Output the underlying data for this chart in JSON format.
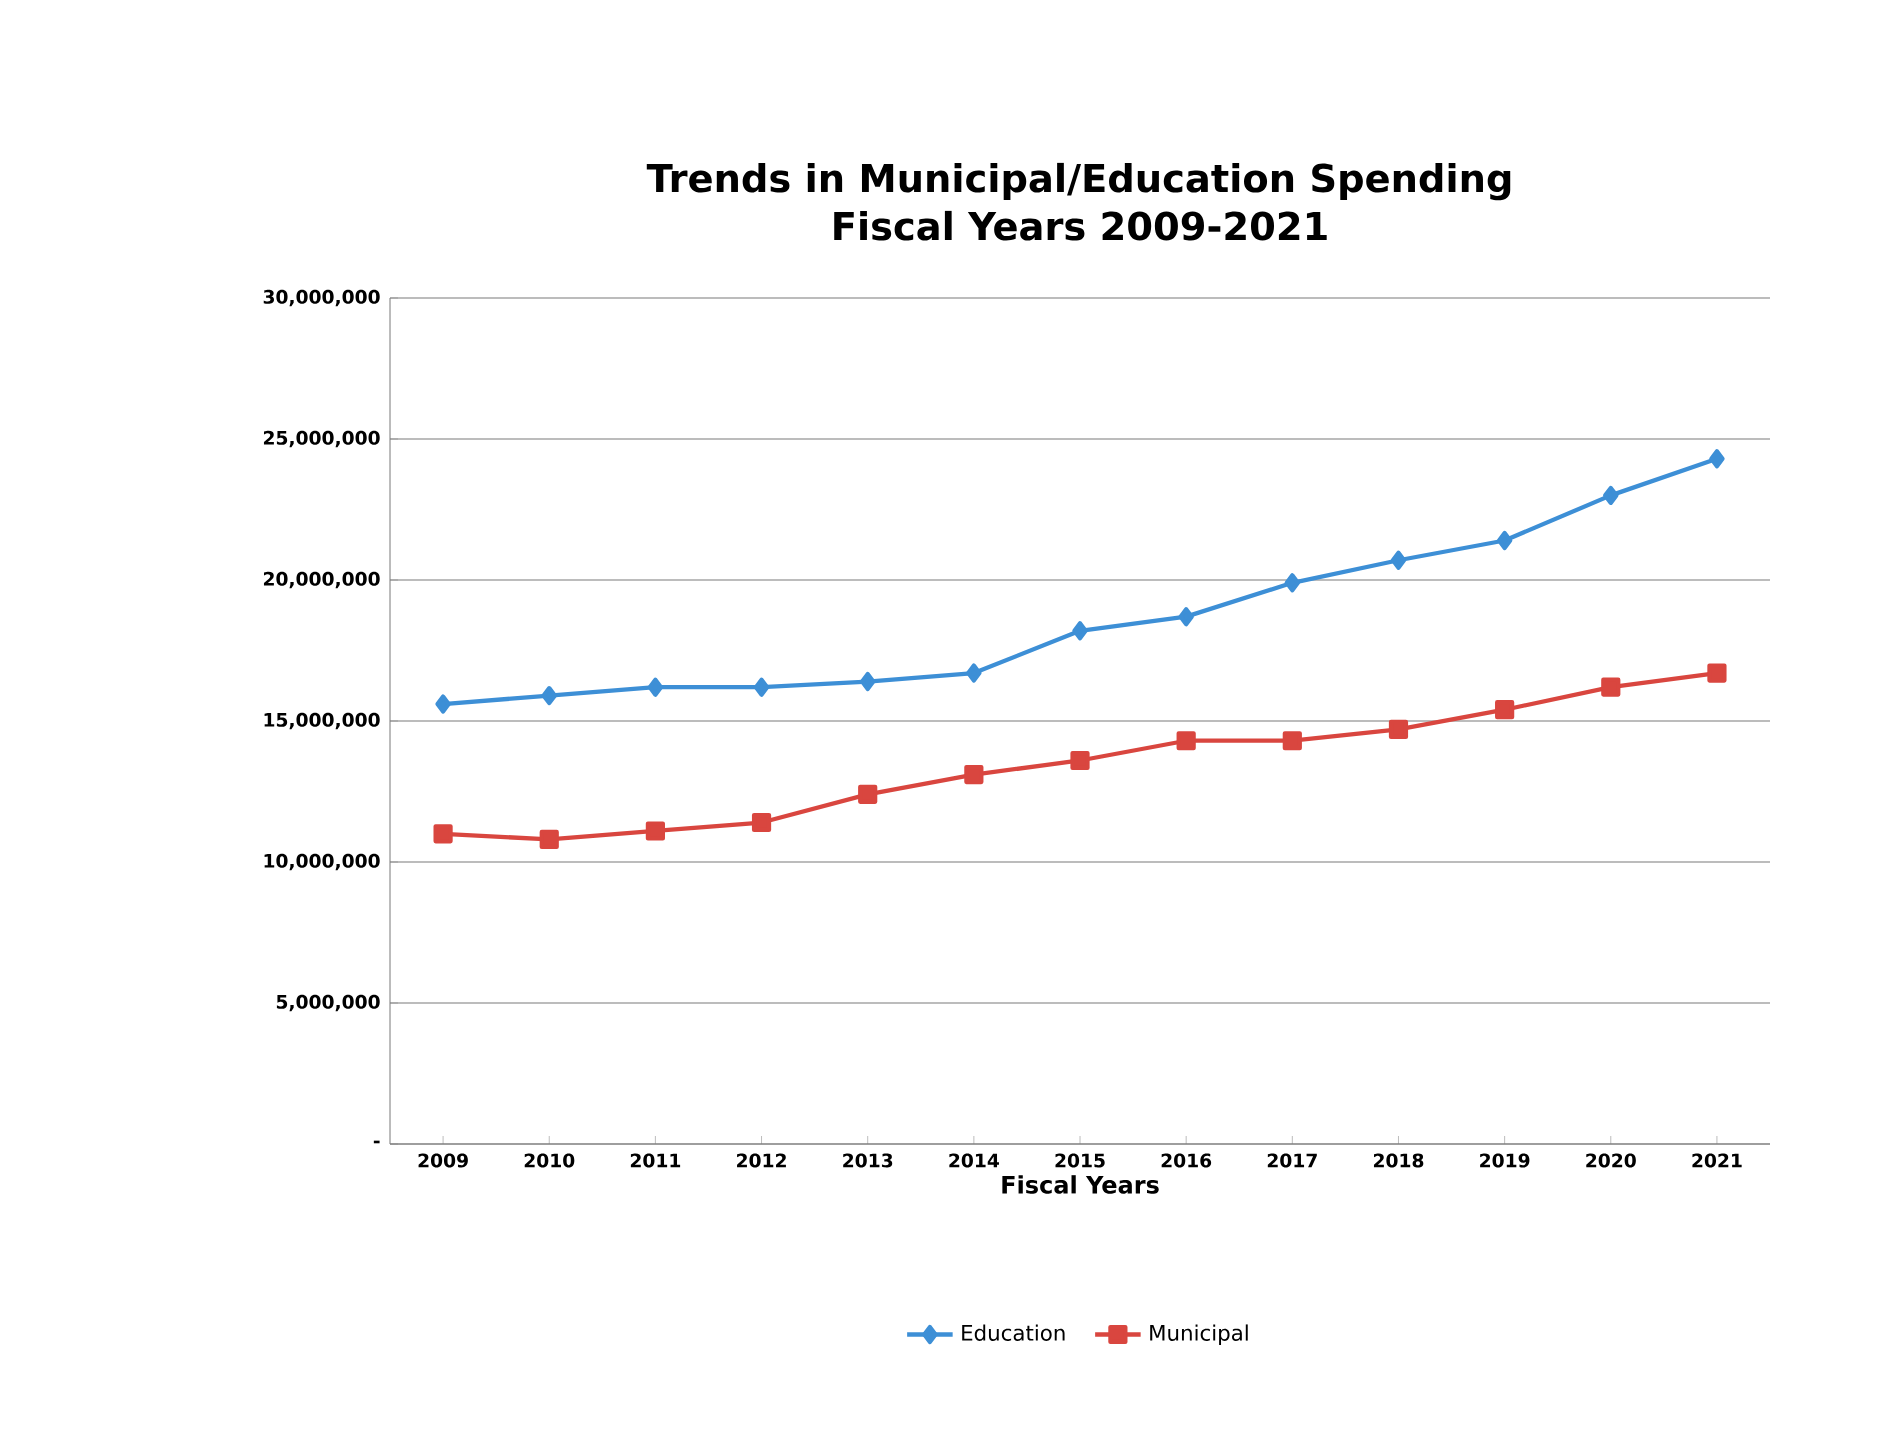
{
  "chart_data": {
    "type": "line",
    "title": "Trends in Municipal/Education Spending\nFiscal Years 2009-2021",
    "xlabel": "Fiscal Years",
    "categories": [
      "2009",
      "2010",
      "2011",
      "2012",
      "2013",
      "2014",
      "2015",
      "2016",
      "2017",
      "2018",
      "2019",
      "2020",
      "2021"
    ],
    "series": [
      {
        "name": "Education",
        "color": "#3d8fd6",
        "marker": "diamond",
        "values": [
          15600000,
          15900000,
          16200000,
          16200000,
          16400000,
          16700000,
          18200000,
          18700000,
          19900000,
          20700000,
          21400000,
          23000000,
          24300000
        ]
      },
      {
        "name": "Municipal",
        "color": "#d9463f",
        "marker": "square",
        "values": [
          11000000,
          10800000,
          11100000,
          11400000,
          12400000,
          13100000,
          13600000,
          14300000,
          14300000,
          14700000,
          15400000,
          16200000,
          16700000
        ]
      }
    ],
    "ylim": [
      0,
      30000000
    ],
    "yticks": [
      {
        "value": 0,
        "label": "-"
      },
      {
        "value": 5000000,
        "label": "5,000,000"
      },
      {
        "value": 10000000,
        "label": "10,000,000"
      },
      {
        "value": 15000000,
        "label": "15,000,000"
      },
      {
        "value": 20000000,
        "label": "20,000,000"
      },
      {
        "value": 25000000,
        "label": "25,000,000"
      },
      {
        "value": 30000000,
        "label": "30,000,000"
      }
    ],
    "grid": "y",
    "legend": "bottom",
    "line_style": "solid"
  }
}
